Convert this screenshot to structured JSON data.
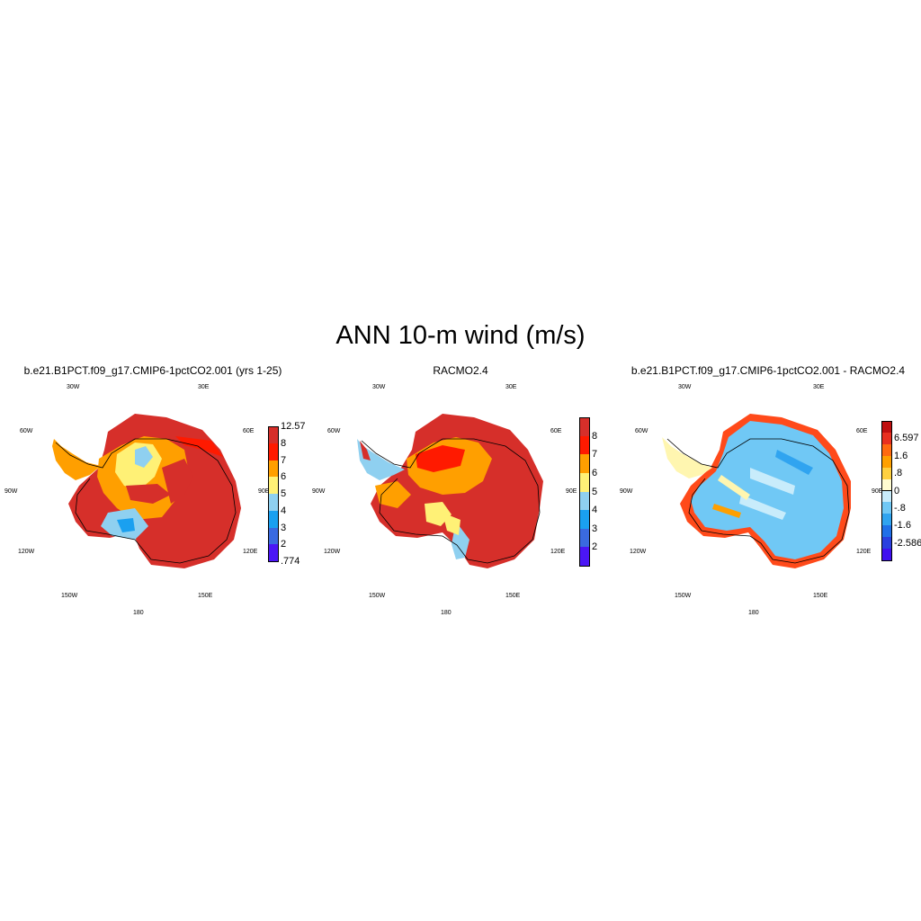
{
  "title": "ANN 10-m wind (m/s)",
  "panels": [
    {
      "title": "b.e21.B1PCT.f09_g17.CMIP6-1pctCO2.001 (yrs 1-25)",
      "colorbar": {
        "labels": [
          "12.57",
          "8",
          "7",
          "6",
          "5",
          "4",
          "3",
          "2",
          ".774"
        ],
        "colors": [
          "#d62f2a",
          "#ff1a00",
          "#ff9f00",
          "#fff176",
          "#8fd0f0",
          "#1aa0f0",
          "#3a6ae0",
          "#4b16f5"
        ]
      }
    },
    {
      "title": "RACMO2.4",
      "colorbar": {
        "labels": [
          "8",
          "7",
          "6",
          "5",
          "4",
          "3",
          "2"
        ],
        "colors": [
          "#d62f2a",
          "#ff1a00",
          "#ff9f00",
          "#fff176",
          "#8fd0f0",
          "#1aa0f0",
          "#3a6ae0",
          "#4b16f5"
        ]
      }
    },
    {
      "title": "b.e21.B1PCT.f09_g17.CMIP6-1pctCO2.001 - RACMO2.4",
      "colorbar": {
        "labels": [
          "6.597",
          "1.6",
          ".8",
          "0",
          "-.8",
          "-1.6",
          "-2.586"
        ],
        "colors": [
          "#c01010",
          "#e83020",
          "#ff6a10",
          "#ffa000",
          "#ffd040",
          "#fffbd0",
          "#c8ecfb",
          "#70c8f5",
          "#30a4f0",
          "#2070e8",
          "#2a40e0",
          "#4010f0"
        ]
      }
    }
  ],
  "lon_labels": {
    "w30": "30W",
    "e30": "30E",
    "w60": "60W",
    "e60": "60E",
    "w90": "90W",
    "e90": "90E",
    "w120": "120W",
    "e120": "120E",
    "w150": "150W",
    "e150": "150E",
    "s180": "180"
  },
  "palette": {
    "red": "#d62f2a",
    "orange": "#ff9f00",
    "yellow": "#fff176",
    "lightblue": "#8fd0f0",
    "blue": "#1aa0f0"
  }
}
